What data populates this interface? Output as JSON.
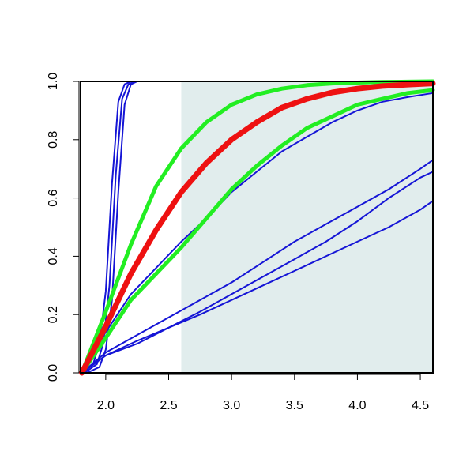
{
  "chart_data": {
    "type": "line",
    "title": "",
    "xlabel": "",
    "ylabel": "",
    "xlim": [
      1.8,
      4.6
    ],
    "ylim": [
      0,
      1
    ],
    "x_ticks": [
      2.0,
      2.5,
      3.0,
      3.5,
      4.0,
      4.5
    ],
    "x_tick_labels": [
      "2.0",
      "2.5",
      "3.0",
      "3.5",
      "4.0",
      "4.5"
    ],
    "y_ticks": [
      0,
      0.2,
      0.4,
      0.6,
      0.8,
      1.0
    ],
    "y_tick_labels": [
      "0.0",
      "0.2",
      "0.4",
      "0.6",
      "0.8",
      "1.0"
    ],
    "grid": false,
    "shaded_region": {
      "x_from": 2.6,
      "x_to": 4.6,
      "color": "#e1eded"
    },
    "colors": {
      "blue": "#1515d6",
      "green": "#22ee22",
      "red": "#ee1111",
      "frame": "#000000"
    },
    "series": [
      {
        "color": "blue",
        "width": 2,
        "x": [
          1.81,
          1.9,
          1.95,
          2.0,
          2.05,
          2.1,
          2.15,
          2.2,
          2.3,
          2.5,
          4.6
        ],
        "y": [
          0.0,
          0.03,
          0.1,
          0.28,
          0.65,
          0.93,
          0.99,
          1.0,
          1.0,
          1.0,
          1.0
        ]
      },
      {
        "color": "blue",
        "width": 2,
        "x": [
          1.83,
          1.93,
          1.98,
          2.03,
          2.08,
          2.13,
          2.18,
          2.23,
          2.3,
          2.5,
          4.6
        ],
        "y": [
          0.0,
          0.03,
          0.1,
          0.3,
          0.68,
          0.94,
          0.99,
          1.0,
          1.0,
          1.0,
          1.0
        ]
      },
      {
        "color": "blue",
        "width": 2,
        "x": [
          1.85,
          1.95,
          2.0,
          2.05,
          2.1,
          2.15,
          2.2,
          2.25,
          2.35,
          2.5,
          4.6
        ],
        "y": [
          0.0,
          0.02,
          0.08,
          0.25,
          0.62,
          0.92,
          0.99,
          1.0,
          1.0,
          1.0,
          1.0
        ]
      },
      {
        "color": "blue",
        "width": 2,
        "x": [
          1.81,
          2.0,
          2.2,
          2.4,
          2.6,
          2.8,
          3.0,
          3.2,
          3.4,
          3.6,
          3.8,
          4.0,
          4.2,
          4.4,
          4.6
        ],
        "y": [
          0.0,
          0.14,
          0.27,
          0.36,
          0.45,
          0.53,
          0.62,
          0.69,
          0.76,
          0.81,
          0.86,
          0.9,
          0.93,
          0.946,
          0.96
        ]
      },
      {
        "color": "blue",
        "width": 2,
        "x": [
          1.81,
          2.0,
          2.25,
          2.5,
          2.75,
          3.0,
          3.25,
          3.5,
          3.75,
          4.0,
          4.25,
          4.5,
          4.6
        ],
        "y": [
          0.0,
          0.06,
          0.1,
          0.155,
          0.21,
          0.27,
          0.33,
          0.39,
          0.45,
          0.52,
          0.6,
          0.67,
          0.69
        ]
      },
      {
        "color": "blue",
        "width": 2,
        "x": [
          1.81,
          2.0,
          2.25,
          2.5,
          2.75,
          3.0,
          3.25,
          3.5,
          3.75,
          4.0,
          4.25,
          4.5,
          4.6
        ],
        "y": [
          0.0,
          0.07,
          0.13,
          0.19,
          0.25,
          0.31,
          0.38,
          0.45,
          0.51,
          0.57,
          0.63,
          0.7,
          0.73
        ]
      },
      {
        "color": "blue",
        "width": 2,
        "x": [
          1.81,
          2.0,
          2.25,
          2.5,
          2.75,
          3.0,
          3.25,
          3.5,
          3.75,
          4.0,
          4.25,
          4.5,
          4.6
        ],
        "y": [
          0.0,
          0.06,
          0.11,
          0.155,
          0.2,
          0.25,
          0.3,
          0.35,
          0.4,
          0.45,
          0.5,
          0.56,
          0.59
        ]
      },
      {
        "color": "green",
        "width": 5,
        "x": [
          1.81,
          2.0,
          2.2,
          2.4,
          2.6,
          2.8,
          3.0,
          3.2,
          3.4,
          3.6,
          3.8,
          4.0,
          4.2,
          4.4,
          4.6
        ],
        "y": [
          0.0,
          0.21,
          0.44,
          0.64,
          0.77,
          0.86,
          0.92,
          0.955,
          0.975,
          0.987,
          0.993,
          0.996,
          0.998,
          0.999,
          1.0
        ]
      },
      {
        "color": "green",
        "width": 5,
        "x": [
          1.81,
          2.0,
          2.2,
          2.4,
          2.6,
          2.8,
          3.0,
          3.2,
          3.4,
          3.6,
          3.8,
          4.0,
          4.2,
          4.4,
          4.6
        ],
        "y": [
          0.0,
          0.12,
          0.25,
          0.34,
          0.43,
          0.53,
          0.63,
          0.71,
          0.78,
          0.84,
          0.88,
          0.92,
          0.94,
          0.96,
          0.97
        ]
      },
      {
        "color": "red",
        "width": 7,
        "x": [
          1.81,
          2.0,
          2.2,
          2.4,
          2.6,
          2.8,
          3.0,
          3.2,
          3.4,
          3.6,
          3.8,
          4.0,
          4.2,
          4.4,
          4.6
        ],
        "y": [
          0.0,
          0.16,
          0.34,
          0.49,
          0.62,
          0.72,
          0.8,
          0.86,
          0.91,
          0.94,
          0.962,
          0.975,
          0.984,
          0.989,
          0.993
        ]
      }
    ]
  }
}
